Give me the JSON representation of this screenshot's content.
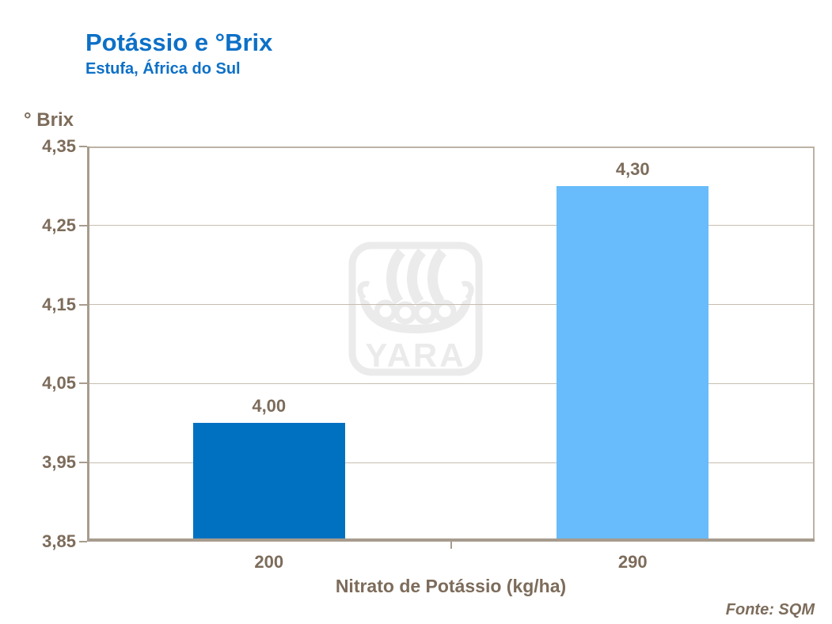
{
  "slide": {
    "title": "Potássio e °Brix",
    "subtitle": "Estufa, África do Sul",
    "y_unit_label": "° Brix",
    "x_axis_title": "Nitrato de Potássio (kg/ha)",
    "source": "Fonte: SQM",
    "watermark_text": "YARA"
  },
  "chart_data": {
    "type": "bar",
    "title": "Potássio e °Brix",
    "subtitle": "Estufa, África do Sul",
    "ylabel": "° Brix",
    "xlabel": "Nitrato de Potássio (kg/ha)",
    "categories": [
      "200",
      "290"
    ],
    "values": [
      4.0,
      4.3
    ],
    "value_labels": [
      "4,00",
      "4,30"
    ],
    "bar_colors": [
      "#0071C1",
      "#68BCFB"
    ],
    "ylim": [
      3.85,
      4.35
    ],
    "yticks": [
      3.85,
      3.95,
      4.05,
      4.15,
      4.25,
      4.35
    ],
    "ytick_labels": [
      "3,85",
      "3,95",
      "4,05",
      "4,15",
      "4,25",
      "4,35"
    ],
    "grid": true,
    "legend_position": "none",
    "source": "Fonte: SQM",
    "watermark": "YARA"
  },
  "colors": {
    "title_blue": "#0D70C7",
    "axis_text_brown": "#7D6C5B",
    "axis_line": "#A79C8E",
    "gridline": "#C6BDAF",
    "bar_dark_blue": "#0071C1",
    "bar_light_blue": "#68BCFB",
    "watermark_gray": "#EBEBEB"
  }
}
